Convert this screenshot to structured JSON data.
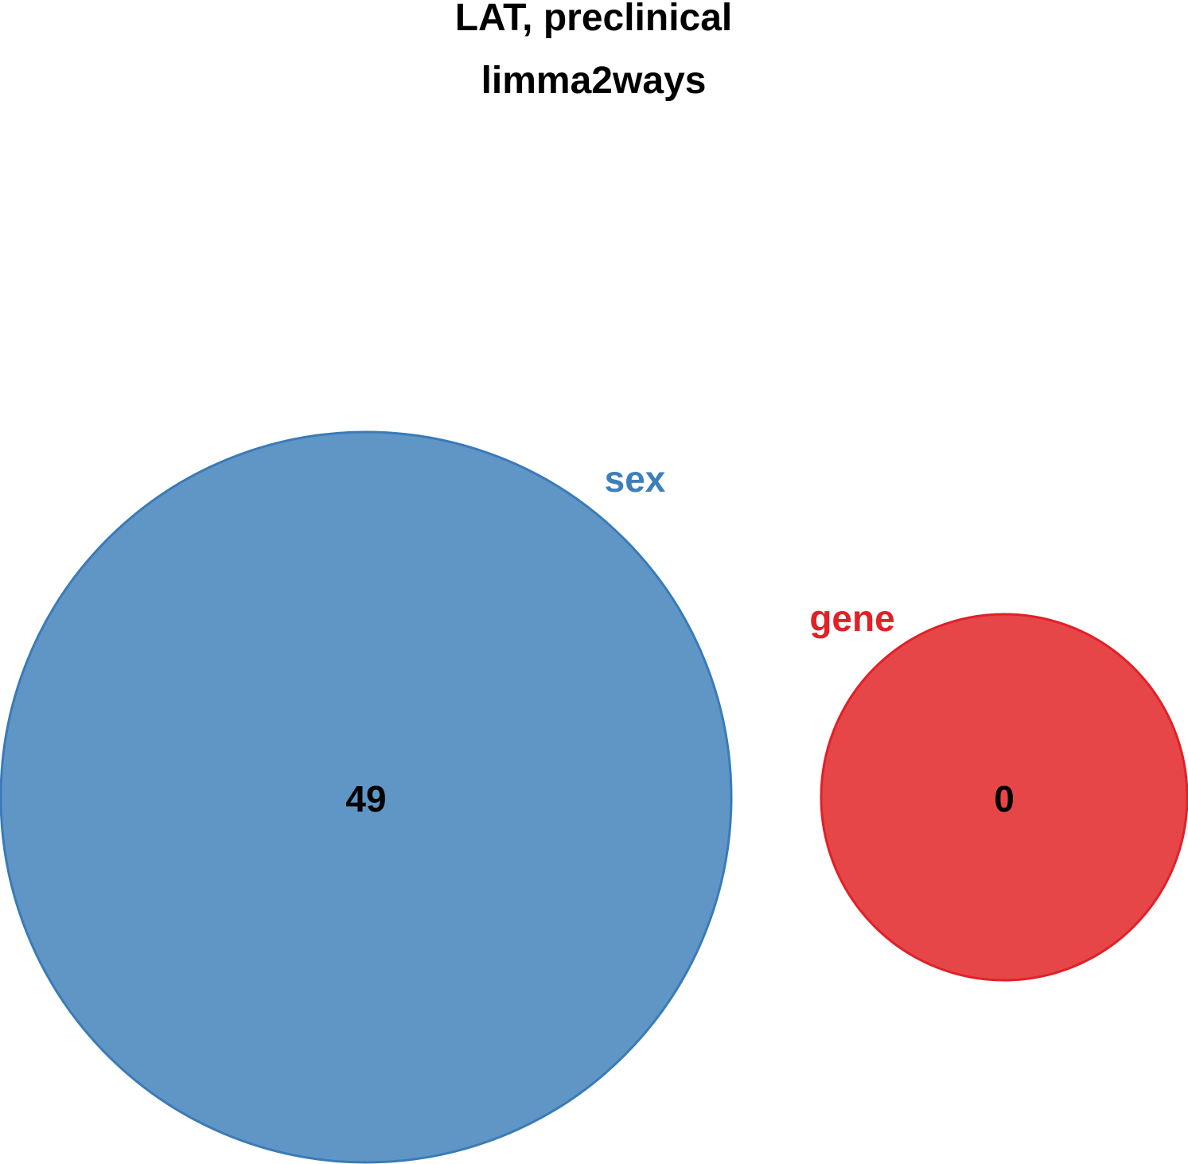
{
  "title": {
    "line1": "LAT, preclinical",
    "line2": "limma2ways"
  },
  "sets": [
    {
      "id": "sex",
      "label": "sex",
      "count": "49",
      "fill_color": "#6096c5",
      "stroke_color": "#3a7bb8",
      "label_color": "#3d7fba"
    },
    {
      "id": "gene",
      "label": "gene",
      "count": "0",
      "fill_color": "#e64647",
      "stroke_color": "#e02127",
      "label_color": "#e02127"
    }
  ]
}
